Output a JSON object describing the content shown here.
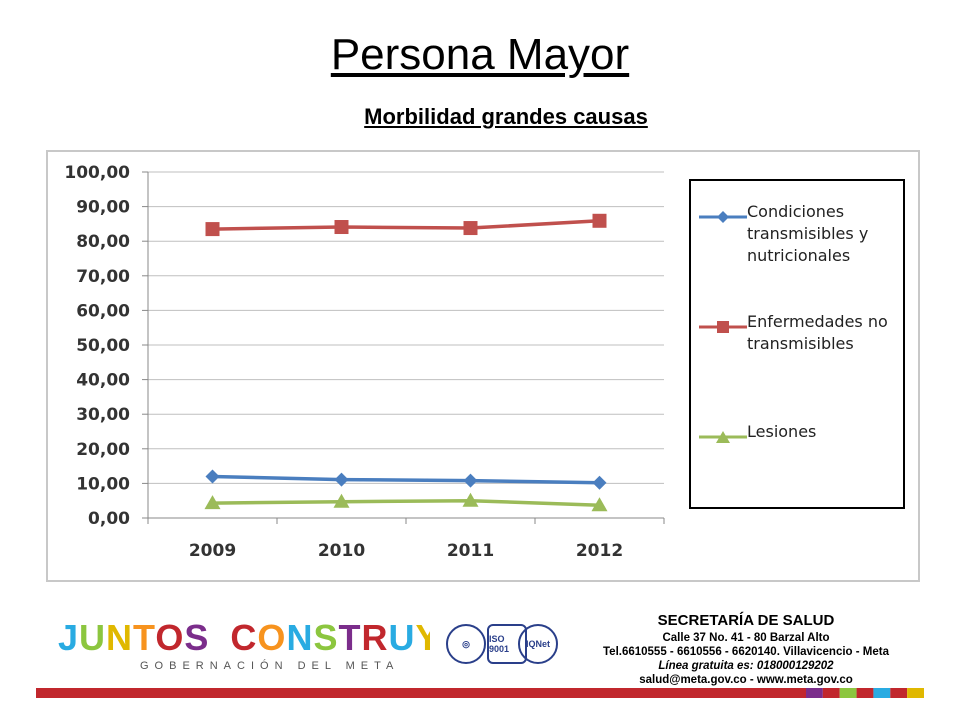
{
  "page": {
    "title": "Persona Mayor",
    "subtitle": "Morbilidad grandes causas"
  },
  "chart_data": {
    "type": "line",
    "categories": [
      "2009",
      "2010",
      "2011",
      "2012"
    ],
    "y_ticks": [
      "0,00",
      "10,00",
      "20,00",
      "30,00",
      "40,00",
      "50,00",
      "60,00",
      "70,00",
      "80,00",
      "90,00",
      "100,00"
    ],
    "ylim": [
      0,
      100
    ],
    "grid": true,
    "legend_position": "right",
    "series": [
      {
        "name": "Condiciones transmisibles y nutricionales",
        "values": [
          12.0,
          11.1,
          10.8,
          10.2
        ],
        "color": "#4a7ebf",
        "marker": "diamond"
      },
      {
        "name": "Enfermedades no transmisibles",
        "values": [
          83.5,
          84.1,
          83.8,
          85.9
        ],
        "color": "#c0504d",
        "marker": "square"
      },
      {
        "name": "Lesiones",
        "values": [
          4.3,
          4.7,
          5.0,
          3.7
        ],
        "color": "#9bbb59",
        "marker": "triangle"
      }
    ]
  },
  "footer": {
    "logo_text": "JUNTOS CONSTRUYENDO",
    "logo_subtext": "GOBERNACIÓN DEL META",
    "badges": [
      "ISO 9001",
      "IQNet"
    ],
    "org_name": "SECRETARÍA DE SALUD",
    "address": "Calle 37 No. 41 - 80 Barzal Alto",
    "phones": "Tel.6610555 - 6610556 - 6620140. Villavicencio - Meta",
    "hotline": "Línea gratuita es: 018000129202",
    "contact": "salud@meta.gov.co - www.meta.gov.co",
    "stripe_colors": [
      "#c1272d",
      "#7b2d8b",
      "#c1272d",
      "#8cc63f",
      "#c1272d",
      "#29abe2",
      "#c1272d",
      "#e0b800"
    ]
  }
}
